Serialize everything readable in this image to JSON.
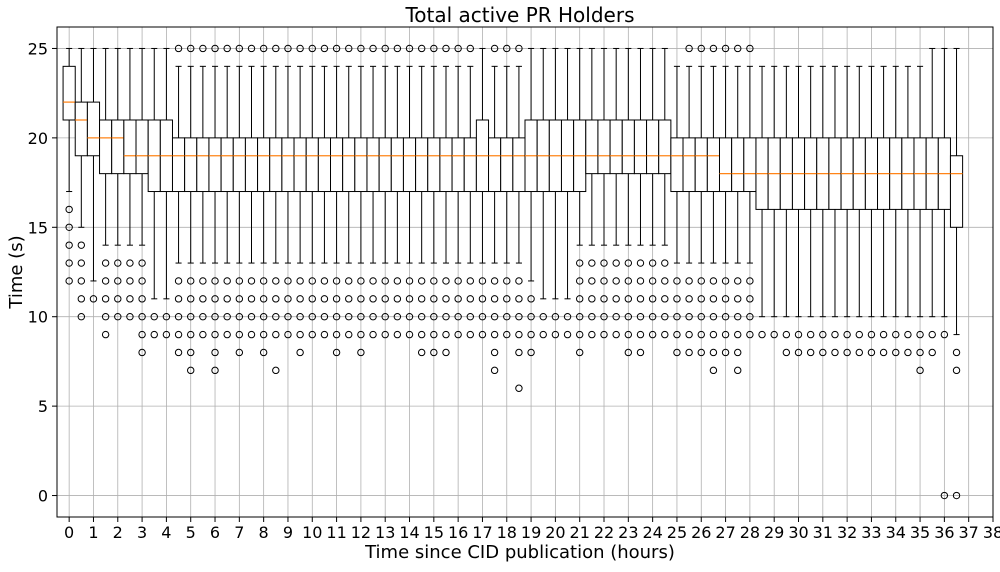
{
  "chart_data": {
    "type": "boxplot",
    "title": "Total active PR Holders",
    "xlabel": "Time since CID publication (hours)",
    "ylabel": "Time (s)",
    "xlim": [
      -0.5,
      38.0
    ],
    "ylim": [
      -1.2,
      26.2
    ],
    "x_ticks": [
      0,
      1,
      2,
      3,
      4,
      5,
      6,
      7,
      8,
      9,
      10,
      11,
      12,
      13,
      14,
      15,
      16,
      17,
      18,
      19,
      20,
      21,
      22,
      23,
      24,
      25,
      26,
      27,
      28,
      29,
      30,
      31,
      32,
      33,
      34,
      35,
      36,
      37,
      38
    ],
    "y_ticks": [
      0,
      5,
      10,
      15,
      20,
      25
    ],
    "grid": true,
    "box_positions_per_hour": 2,
    "box_width_hours": 0.5,
    "colors": {
      "box": "#000000",
      "median": "#ff7f0e",
      "grid": "#b0b0b0",
      "outlier": "#000000"
    },
    "boxes": [
      {
        "q1": 21,
        "q3": 24,
        "median": 22,
        "wl": 17,
        "wh": 25,
        "outliers": [
          16,
          15,
          14,
          13,
          12
        ]
      },
      {
        "q1": 19,
        "q3": 22,
        "median": 21,
        "wl": 15,
        "wh": 25,
        "outliers": [
          14,
          13,
          12,
          11,
          10
        ]
      },
      {
        "q1": 19,
        "q3": 22,
        "median": 20,
        "wl": 12,
        "wh": 25,
        "outliers": [
          11
        ]
      },
      {
        "q1": 18,
        "q3": 21,
        "median": 20,
        "wl": 14,
        "wh": 25,
        "outliers": [
          13,
          12,
          11,
          10,
          9
        ]
      },
      {
        "q1": 18,
        "q3": 21,
        "median": 20,
        "wl": 14,
        "wh": 25,
        "outliers": [
          13,
          12,
          11,
          10
        ]
      },
      {
        "q1": 18,
        "q3": 21,
        "median": 19,
        "wl": 14,
        "wh": 25,
        "outliers": [
          13,
          12,
          11,
          10
        ]
      },
      {
        "q1": 18,
        "q3": 21,
        "median": 19,
        "wl": 14,
        "wh": 25,
        "outliers": [
          13,
          12,
          11,
          10,
          9,
          8
        ]
      },
      {
        "q1": 17,
        "q3": 21,
        "median": 19,
        "wl": 11,
        "wh": 25,
        "outliers": [
          10,
          9
        ]
      },
      {
        "q1": 17,
        "q3": 21,
        "median": 19,
        "wl": 11,
        "wh": 25,
        "outliers": [
          10,
          9
        ]
      },
      {
        "q1": 17,
        "q3": 20,
        "median": 19,
        "wl": 13,
        "wh": 24,
        "outliers": [
          25,
          12,
          11,
          10,
          9,
          8
        ]
      },
      {
        "q1": 17,
        "q3": 20,
        "median": 19,
        "wl": 13,
        "wh": 24,
        "outliers": [
          25,
          12,
          11,
          10,
          9,
          8,
          7
        ]
      },
      {
        "q1": 17,
        "q3": 20,
        "median": 19,
        "wl": 13,
        "wh": 24,
        "outliers": [
          25,
          12,
          11,
          10,
          9
        ]
      },
      {
        "q1": 17,
        "q3": 20,
        "median": 19,
        "wl": 13,
        "wh": 24,
        "outliers": [
          25,
          12,
          11,
          10,
          9,
          8,
          7
        ]
      },
      {
        "q1": 17,
        "q3": 20,
        "median": 19,
        "wl": 13,
        "wh": 24,
        "outliers": [
          25,
          12,
          11,
          10,
          9
        ]
      },
      {
        "q1": 17,
        "q3": 20,
        "median": 19,
        "wl": 13,
        "wh": 24,
        "outliers": [
          25,
          12,
          11,
          10,
          9,
          8
        ]
      },
      {
        "q1": 17,
        "q3": 20,
        "median": 19,
        "wl": 13,
        "wh": 24,
        "outliers": [
          25,
          12,
          11,
          10,
          9
        ]
      },
      {
        "q1": 17,
        "q3": 20,
        "median": 19,
        "wl": 13,
        "wh": 24,
        "outliers": [
          25,
          12,
          11,
          10,
          9,
          8
        ]
      },
      {
        "q1": 17,
        "q3": 20,
        "median": 19,
        "wl": 13,
        "wh": 24,
        "outliers": [
          25,
          12,
          11,
          10,
          9,
          7
        ]
      },
      {
        "q1": 17,
        "q3": 20,
        "median": 19,
        "wl": 13,
        "wh": 24,
        "outliers": [
          25,
          12,
          11,
          10,
          9
        ]
      },
      {
        "q1": 17,
        "q3": 20,
        "median": 19,
        "wl": 13,
        "wh": 24,
        "outliers": [
          25,
          12,
          11,
          10,
          9,
          8
        ]
      },
      {
        "q1": 17,
        "q3": 20,
        "median": 19,
        "wl": 13,
        "wh": 24,
        "outliers": [
          25,
          12,
          11,
          10,
          9
        ]
      },
      {
        "q1": 17,
        "q3": 20,
        "median": 19,
        "wl": 13,
        "wh": 24,
        "outliers": [
          25,
          12,
          11,
          10,
          9
        ]
      },
      {
        "q1": 17,
        "q3": 20,
        "median": 19,
        "wl": 13,
        "wh": 24,
        "outliers": [
          25,
          12,
          11,
          10,
          9,
          8
        ]
      },
      {
        "q1": 17,
        "q3": 20,
        "median": 19,
        "wl": 13,
        "wh": 24,
        "outliers": [
          25,
          12,
          11,
          10,
          9
        ]
      },
      {
        "q1": 17,
        "q3": 20,
        "median": 19,
        "wl": 13,
        "wh": 24,
        "outliers": [
          25,
          12,
          11,
          10,
          9,
          8
        ]
      },
      {
        "q1": 17,
        "q3": 20,
        "median": 19,
        "wl": 13,
        "wh": 24,
        "outliers": [
          25,
          12,
          11,
          10,
          9
        ]
      },
      {
        "q1": 17,
        "q3": 20,
        "median": 19,
        "wl": 13,
        "wh": 24,
        "outliers": [
          25,
          12,
          11,
          10,
          9
        ]
      },
      {
        "q1": 17,
        "q3": 20,
        "median": 19,
        "wl": 13,
        "wh": 24,
        "outliers": [
          25,
          12,
          11,
          10,
          9
        ]
      },
      {
        "q1": 17,
        "q3": 20,
        "median": 19,
        "wl": 13,
        "wh": 24,
        "outliers": [
          25,
          12,
          11,
          10,
          9
        ]
      },
      {
        "q1": 17,
        "q3": 20,
        "median": 19,
        "wl": 13,
        "wh": 24,
        "outliers": [
          25,
          12,
          11,
          10,
          9,
          8
        ]
      },
      {
        "q1": 17,
        "q3": 20,
        "median": 19,
        "wl": 13,
        "wh": 24,
        "outliers": [
          25,
          12,
          11,
          10,
          9,
          8
        ]
      },
      {
        "q1": 17,
        "q3": 20,
        "median": 19,
        "wl": 13,
        "wh": 24,
        "outliers": [
          25,
          12,
          11,
          10,
          9,
          8
        ]
      },
      {
        "q1": 17,
        "q3": 20,
        "median": 19,
        "wl": 13,
        "wh": 24,
        "outliers": [
          25,
          12,
          11,
          10,
          9
        ]
      },
      {
        "q1": 17,
        "q3": 20,
        "median": 19,
        "wl": 13,
        "wh": 24,
        "outliers": [
          25,
          12,
          11,
          10,
          9
        ]
      },
      {
        "q1": 17,
        "q3": 21,
        "median": 19,
        "wl": 13,
        "wh": 25,
        "outliers": [
          12,
          11,
          10,
          9
        ]
      },
      {
        "q1": 17,
        "q3": 20,
        "median": 19,
        "wl": 13,
        "wh": 24,
        "outliers": [
          25,
          12,
          11,
          10,
          9,
          8,
          7
        ]
      },
      {
        "q1": 17,
        "q3": 20,
        "median": 19,
        "wl": 13,
        "wh": 24,
        "outliers": [
          25,
          12,
          11,
          10,
          9
        ]
      },
      {
        "q1": 17,
        "q3": 20,
        "median": 19,
        "wl": 13,
        "wh": 24,
        "outliers": [
          25,
          12,
          11,
          10,
          9,
          8,
          6
        ]
      },
      {
        "q1": 17,
        "q3": 21,
        "median": 19,
        "wl": 12,
        "wh": 25,
        "outliers": [
          11,
          10,
          9,
          8
        ]
      },
      {
        "q1": 17,
        "q3": 21,
        "median": 19,
        "wl": 11,
        "wh": 25,
        "outliers": [
          10,
          9
        ]
      },
      {
        "q1": 17,
        "q3": 21,
        "median": 19,
        "wl": 11,
        "wh": 25,
        "outliers": [
          10,
          9
        ]
      },
      {
        "q1": 17,
        "q3": 21,
        "median": 19,
        "wl": 11,
        "wh": 25,
        "outliers": [
          10,
          9
        ]
      },
      {
        "q1": 17,
        "q3": 21,
        "median": 19,
        "wl": 14,
        "wh": 25,
        "outliers": [
          13,
          12,
          11,
          10,
          9,
          8
        ]
      },
      {
        "q1": 18,
        "q3": 21,
        "median": 19,
        "wl": 14,
        "wh": 25,
        "outliers": [
          13,
          12,
          11,
          10,
          9
        ]
      },
      {
        "q1": 18,
        "q3": 21,
        "median": 19,
        "wl": 14,
        "wh": 25,
        "outliers": [
          13,
          12,
          11,
          10,
          9
        ]
      },
      {
        "q1": 18,
        "q3": 21,
        "median": 19,
        "wl": 14,
        "wh": 25,
        "outliers": [
          13,
          12,
          11,
          10,
          9
        ]
      },
      {
        "q1": 18,
        "q3": 21,
        "median": 19,
        "wl": 14,
        "wh": 25,
        "outliers": [
          13,
          12,
          11,
          10,
          9,
          8
        ]
      },
      {
        "q1": 18,
        "q3": 21,
        "median": 19,
        "wl": 14,
        "wh": 25,
        "outliers": [
          13,
          12,
          11,
          10,
          9,
          8
        ]
      },
      {
        "q1": 18,
        "q3": 21,
        "median": 19,
        "wl": 14,
        "wh": 25,
        "outliers": [
          13,
          12,
          11,
          10,
          9
        ]
      },
      {
        "q1": 18,
        "q3": 21,
        "median": 19,
        "wl": 14,
        "wh": 25,
        "outliers": [
          13,
          12,
          11,
          10,
          9
        ]
      },
      {
        "q1": 17,
        "q3": 20,
        "median": 19,
        "wl": 13,
        "wh": 24,
        "outliers": [
          12,
          11,
          10,
          9,
          8
        ]
      },
      {
        "q1": 17,
        "q3": 20,
        "median": 19,
        "wl": 13,
        "wh": 24,
        "outliers": [
          25,
          12,
          11,
          10,
          9,
          8
        ]
      },
      {
        "q1": 17,
        "q3": 20,
        "median": 19,
        "wl": 13,
        "wh": 24,
        "outliers": [
          25,
          12,
          11,
          10,
          9,
          8
        ]
      },
      {
        "q1": 17,
        "q3": 20,
        "median": 19,
        "wl": 13,
        "wh": 24,
        "outliers": [
          25,
          12,
          11,
          10,
          9,
          8,
          7
        ]
      },
      {
        "q1": 17,
        "q3": 20,
        "median": 18,
        "wl": 13,
        "wh": 24,
        "outliers": [
          25,
          12,
          11,
          10,
          9,
          8
        ]
      },
      {
        "q1": 17,
        "q3": 20,
        "median": 18,
        "wl": 13,
        "wh": 24,
        "outliers": [
          25,
          12,
          11,
          10,
          9,
          8,
          7
        ]
      },
      {
        "q1": 17,
        "q3": 20,
        "median": 18,
        "wl": 13,
        "wh": 24,
        "outliers": [
          25,
          12,
          11,
          10,
          9
        ]
      },
      {
        "q1": 16,
        "q3": 20,
        "median": 18,
        "wl": 10,
        "wh": 24,
        "outliers": [
          9
        ]
      },
      {
        "q1": 16,
        "q3": 20,
        "median": 18,
        "wl": 10,
        "wh": 24,
        "outliers": [
          9
        ]
      },
      {
        "q1": 16,
        "q3": 20,
        "median": 18,
        "wl": 10,
        "wh": 24,
        "outliers": [
          9,
          8
        ]
      },
      {
        "q1": 16,
        "q3": 20,
        "median": 18,
        "wl": 10,
        "wh": 24,
        "outliers": [
          9,
          8
        ]
      },
      {
        "q1": 16,
        "q3": 20,
        "median": 18,
        "wl": 10,
        "wh": 24,
        "outliers": [
          9,
          8
        ]
      },
      {
        "q1": 16,
        "q3": 20,
        "median": 18,
        "wl": 10,
        "wh": 24,
        "outliers": [
          9,
          8
        ]
      },
      {
        "q1": 16,
        "q3": 20,
        "median": 18,
        "wl": 10,
        "wh": 24,
        "outliers": [
          9,
          8
        ]
      },
      {
        "q1": 16,
        "q3": 20,
        "median": 18,
        "wl": 10,
        "wh": 24,
        "outliers": [
          9,
          8
        ]
      },
      {
        "q1": 16,
        "q3": 20,
        "median": 18,
        "wl": 10,
        "wh": 24,
        "outliers": [
          9,
          8
        ]
      },
      {
        "q1": 16,
        "q3": 20,
        "median": 18,
        "wl": 10,
        "wh": 24,
        "outliers": [
          9,
          8
        ]
      },
      {
        "q1": 16,
        "q3": 20,
        "median": 18,
        "wl": 10,
        "wh": 24,
        "outliers": [
          9,
          8
        ]
      },
      {
        "q1": 16,
        "q3": 20,
        "median": 18,
        "wl": 10,
        "wh": 24,
        "outliers": [
          9,
          8
        ]
      },
      {
        "q1": 16,
        "q3": 20,
        "median": 18,
        "wl": 10,
        "wh": 24,
        "outliers": [
          9,
          8
        ]
      },
      {
        "q1": 16,
        "q3": 20,
        "median": 18,
        "wl": 10,
        "wh": 24,
        "outliers": [
          9,
          8,
          7
        ]
      },
      {
        "q1": 16,
        "q3": 20,
        "median": 18,
        "wl": 10,
        "wh": 25,
        "outliers": [
          9,
          8
        ]
      },
      {
        "q1": 16,
        "q3": 20,
        "median": 18,
        "wl": 10,
        "wh": 25,
        "outliers": [
          9,
          0
        ]
      },
      {
        "q1": 15,
        "q3": 19,
        "median": 18,
        "wl": 9,
        "wh": 25,
        "outliers": [
          8,
          7,
          0
        ]
      }
    ]
  }
}
